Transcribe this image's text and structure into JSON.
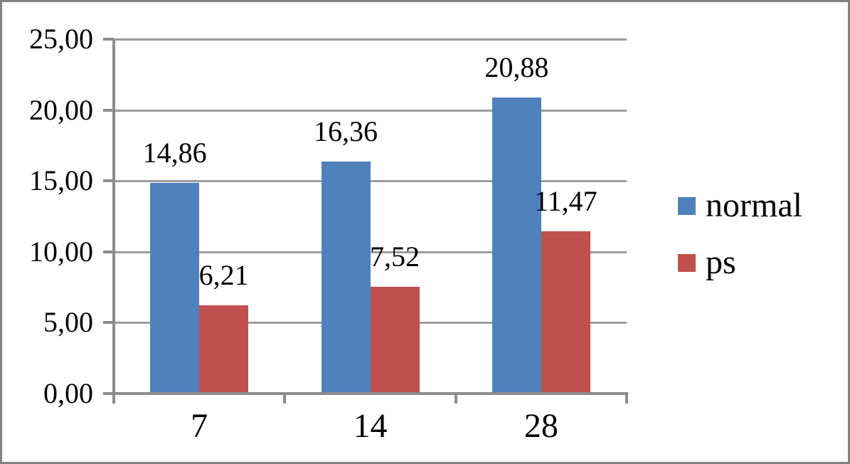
{
  "chart_data": {
    "type": "bar",
    "categories": [
      "7",
      "14",
      "28"
    ],
    "series": [
      {
        "name": "normal",
        "color": "#4F81BD",
        "values": [
          14.86,
          16.36,
          20.88
        ],
        "value_labels": [
          "14,86",
          "16,36",
          "20,88"
        ]
      },
      {
        "name": "ps",
        "color": "#C0504D",
        "values": [
          6.21,
          7.52,
          11.47
        ],
        "value_labels": [
          "6,21",
          "7,52",
          "11,47"
        ]
      }
    ],
    "title": "",
    "xlabel": "",
    "ylabel": "",
    "ylim": [
      0,
      25
    ],
    "ytick_step": 5,
    "ytick_labels": [
      "0,00",
      "5,00",
      "10,00",
      "15,00",
      "20,00",
      "25,00"
    ],
    "grid": true,
    "legend_position": "right",
    "number_format": "comma-decimal"
  },
  "colors": {
    "series_normal": "#4F81BD",
    "series_ps": "#C0504D",
    "gridline": "#9C9C9C",
    "axis": "#8C8C8C",
    "frame_border": "#818181",
    "text": "#000000",
    "background": "#FFFFFF"
  }
}
